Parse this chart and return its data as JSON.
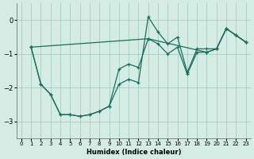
{
  "xlabel": "Humidex (Indice chaleur)",
  "bg_color": "#d4ece4",
  "grid_color": "#a0c8b8",
  "line_color": "#1a6e5e",
  "xlim": [
    -0.5,
    23.5
  ],
  "ylim": [
    -3.5,
    0.5
  ],
  "yticks": [
    0,
    -1,
    -2,
    -3
  ],
  "xticks": [
    0,
    1,
    2,
    3,
    4,
    5,
    6,
    7,
    8,
    9,
    10,
    11,
    12,
    13,
    14,
    15,
    16,
    17,
    18,
    19,
    20,
    21,
    22,
    23
  ],
  "line1_x": [
    1,
    2,
    3,
    4,
    5,
    6,
    7,
    8,
    9,
    10,
    11,
    12,
    13,
    14,
    15,
    16,
    17,
    18,
    19,
    20,
    21,
    22,
    23
  ],
  "line1_y": [
    -0.8,
    -1.9,
    -2.2,
    -2.8,
    -2.8,
    -2.85,
    -2.8,
    -2.7,
    -2.55,
    -1.9,
    -1.75,
    -1.85,
    0.1,
    -0.35,
    -0.7,
    -0.5,
    -1.55,
    -0.85,
    -0.85,
    -0.85,
    -0.25,
    -0.45,
    -0.65
  ],
  "line2_x": [
    1,
    2,
    3,
    4,
    5,
    6,
    7,
    8,
    9,
    10,
    11,
    12,
    13,
    14,
    15,
    16,
    17,
    18,
    19,
    20,
    21,
    22,
    23
  ],
  "line2_y": [
    -0.8,
    -1.9,
    -2.2,
    -2.8,
    -2.8,
    -2.85,
    -2.8,
    -2.7,
    -2.55,
    -1.45,
    -1.3,
    -1.4,
    -0.55,
    -0.7,
    -1.0,
    -0.8,
    -1.6,
    -0.95,
    -0.95,
    -0.85,
    -0.25,
    -0.45,
    -0.65
  ],
  "line3_x": [
    1,
    13,
    19,
    20,
    21,
    22,
    23
  ],
  "line3_y": [
    -0.8,
    -0.55,
    -0.95,
    -0.85,
    -0.25,
    -0.45,
    -0.65
  ]
}
